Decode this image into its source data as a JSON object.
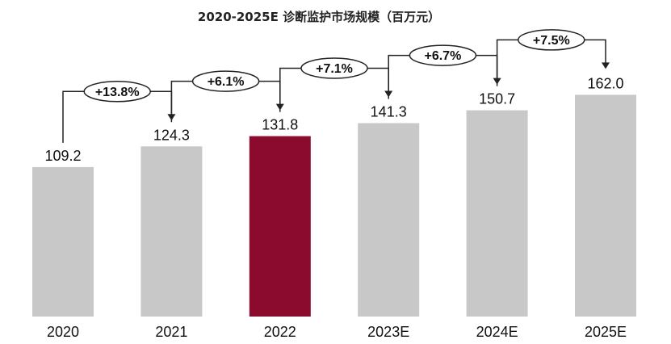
{
  "chart_data": {
    "type": "bar",
    "title": "2020-2025E 诊断监护市场规模（百万元）",
    "categories": [
      "2020",
      "2021",
      "2022",
      "2023E",
      "2024E",
      "2025E"
    ],
    "values": [
      109.2,
      124.3,
      131.8,
      141.3,
      150.7,
      162.0
    ],
    "value_labels": [
      "109.2",
      "124.3",
      "131.8",
      "141.3",
      "150.7",
      "162.0"
    ],
    "growth_labels": [
      "+13.8%",
      "+6.1%",
      "+7.1%",
      "+6.7%",
      "+7.5%"
    ],
    "colors": {
      "bar": "#c8c8c8",
      "highlight": "#8b0b2e"
    },
    "highlight_index": 2,
    "grid": false,
    "legend": "none"
  }
}
